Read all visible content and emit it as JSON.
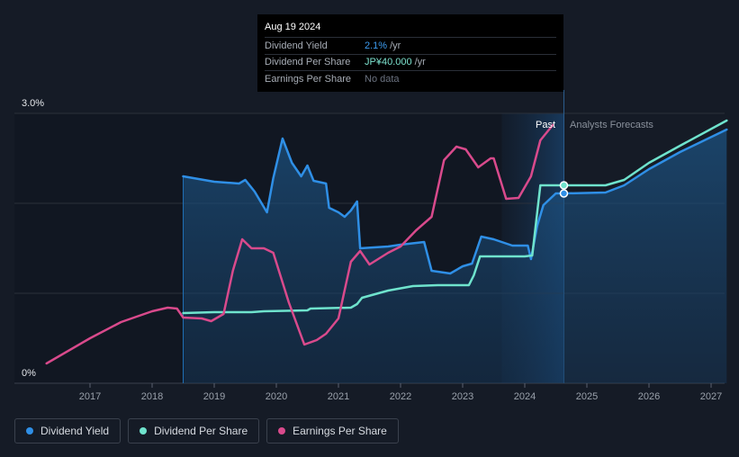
{
  "tooltip": {
    "date": "Aug 19 2024",
    "rows": [
      {
        "label": "Dividend Yield",
        "value": "2.1%",
        "unit": "/yr"
      },
      {
        "label": "Dividend Per Share",
        "value": "JP¥40.000",
        "unit": "/yr"
      },
      {
        "label": "Earnings Per Share",
        "value": "No data"
      }
    ]
  },
  "legend": [
    {
      "label": "Dividend Yield",
      "color": "#2f8fe6"
    },
    {
      "label": "Dividend Per Share",
      "color": "#6fe3cd"
    },
    {
      "label": "Earnings Per Share",
      "color": "#d94a8c"
    }
  ],
  "chart_data": {
    "type": "line",
    "y_ticks": [
      "3.0%",
      "0%"
    ],
    "x_ticks": [
      "2017",
      "2018",
      "2019",
      "2020",
      "2021",
      "2022",
      "2023",
      "2024",
      "2025",
      "2026",
      "2027"
    ],
    "regions": {
      "past_label": "Past",
      "forecast_label": "Analysts Forecasts",
      "past_end": 2024.63
    },
    "ylim": [
      0,
      3.0
    ],
    "colors": {
      "yield": "#2f8fe6",
      "dps": "#6fe3cd",
      "eps": "#d94a8c"
    },
    "series": [
      {
        "name": "Dividend Yield",
        "key": "yield",
        "area": true,
        "points": [
          [
            2018.5,
            2.3
          ],
          [
            2019.0,
            2.24
          ],
          [
            2019.4,
            2.22
          ],
          [
            2019.5,
            2.26
          ],
          [
            2019.65,
            2.13
          ],
          [
            2019.85,
            1.9
          ],
          [
            2019.95,
            2.28
          ],
          [
            2020.1,
            2.72
          ],
          [
            2020.25,
            2.45
          ],
          [
            2020.4,
            2.3
          ],
          [
            2020.5,
            2.42
          ],
          [
            2020.6,
            2.25
          ],
          [
            2020.8,
            2.22
          ],
          [
            2020.85,
            1.95
          ],
          [
            2021.0,
            1.9
          ],
          [
            2021.1,
            1.85
          ],
          [
            2021.2,
            1.92
          ],
          [
            2021.3,
            2.02
          ],
          [
            2021.35,
            1.5
          ],
          [
            2021.8,
            1.52
          ],
          [
            2022.0,
            1.54
          ],
          [
            2022.38,
            1.57
          ],
          [
            2022.5,
            1.25
          ],
          [
            2022.8,
            1.22
          ],
          [
            2023.0,
            1.3
          ],
          [
            2023.15,
            1.33
          ],
          [
            2023.3,
            1.63
          ],
          [
            2023.5,
            1.6
          ],
          [
            2023.8,
            1.53
          ],
          [
            2024.05,
            1.53
          ],
          [
            2024.1,
            1.38
          ],
          [
            2024.2,
            1.75
          ],
          [
            2024.3,
            1.98
          ],
          [
            2024.5,
            2.11
          ],
          [
            2024.63,
            2.11
          ],
          [
            2025.3,
            2.12
          ],
          [
            2025.6,
            2.2
          ],
          [
            2026.0,
            2.38
          ],
          [
            2026.5,
            2.57
          ],
          [
            2027.25,
            2.82
          ]
        ]
      },
      {
        "name": "Dividend Per Share",
        "key": "dps",
        "area": false,
        "points": [
          [
            2018.5,
            0.78
          ],
          [
            2019.0,
            0.79
          ],
          [
            2019.6,
            0.79
          ],
          [
            2019.8,
            0.8
          ],
          [
            2020.5,
            0.81
          ],
          [
            2020.55,
            0.83
          ],
          [
            2021.2,
            0.84
          ],
          [
            2021.3,
            0.88
          ],
          [
            2021.38,
            0.95
          ],
          [
            2021.8,
            1.03
          ],
          [
            2022.2,
            1.08
          ],
          [
            2022.6,
            1.09
          ],
          [
            2023.1,
            1.09
          ],
          [
            2023.18,
            1.2
          ],
          [
            2023.28,
            1.41
          ],
          [
            2024.0,
            1.41
          ],
          [
            2024.12,
            1.42
          ],
          [
            2024.25,
            2.2
          ],
          [
            2024.63,
            2.2
          ],
          [
            2025.3,
            2.2
          ],
          [
            2025.6,
            2.26
          ],
          [
            2026.0,
            2.45
          ],
          [
            2026.5,
            2.64
          ],
          [
            2027.25,
            2.92
          ]
        ]
      },
      {
        "name": "Earnings Per Share",
        "key": "eps",
        "area": false,
        "points": [
          [
            2016.3,
            0.22
          ],
          [
            2017.0,
            0.5
          ],
          [
            2017.5,
            0.68
          ],
          [
            2018.0,
            0.8
          ],
          [
            2018.25,
            0.84
          ],
          [
            2018.4,
            0.83
          ],
          [
            2018.5,
            0.73
          ],
          [
            2018.8,
            0.72
          ],
          [
            2018.95,
            0.69
          ],
          [
            2019.15,
            0.77
          ],
          [
            2019.3,
            1.25
          ],
          [
            2019.45,
            1.6
          ],
          [
            2019.6,
            1.5
          ],
          [
            2019.8,
            1.5
          ],
          [
            2019.95,
            1.45
          ],
          [
            2020.2,
            0.9
          ],
          [
            2020.45,
            0.43
          ],
          [
            2020.65,
            0.48
          ],
          [
            2020.8,
            0.55
          ],
          [
            2021.0,
            0.72
          ],
          [
            2021.2,
            1.35
          ],
          [
            2021.35,
            1.47
          ],
          [
            2021.5,
            1.32
          ],
          [
            2021.8,
            1.45
          ],
          [
            2022.0,
            1.52
          ],
          [
            2022.25,
            1.7
          ],
          [
            2022.5,
            1.85
          ],
          [
            2022.7,
            2.48
          ],
          [
            2022.9,
            2.63
          ],
          [
            2023.05,
            2.6
          ],
          [
            2023.25,
            2.4
          ],
          [
            2023.45,
            2.5
          ],
          [
            2023.5,
            2.5
          ],
          [
            2023.7,
            2.05
          ],
          [
            2023.9,
            2.06
          ],
          [
            2024.1,
            2.3
          ],
          [
            2024.25,
            2.7
          ],
          [
            2024.45,
            2.87
          ]
        ]
      }
    ],
    "highlight_points": [
      {
        "series": "dps",
        "x": 2024.63,
        "y": 2.2
      },
      {
        "series": "yield",
        "x": 2024.63,
        "y": 2.11
      }
    ]
  }
}
